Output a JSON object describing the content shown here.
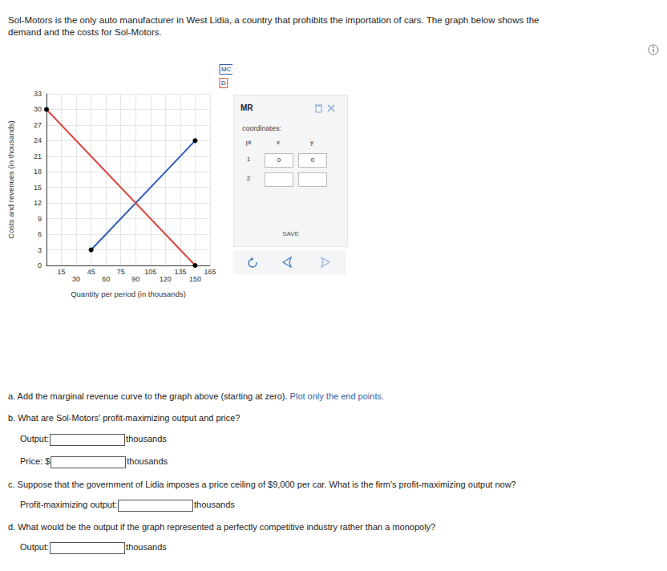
{
  "intro": "Sol-Motors is the only auto manufacturer in West Lidia, a country that prohibits the importation of cars. The graph below shows the demand and the costs for Sol-Motors.",
  "chart_data": {
    "type": "line",
    "xlabel": "Quantity per period (in thousands)",
    "ylabel": "Costs and revenues (in thousands)",
    "xlim": [
      0,
      165
    ],
    "ylim": [
      0,
      33
    ],
    "xticks": [
      15,
      30,
      45,
      60,
      75,
      90,
      105,
      120,
      135,
      150,
      165
    ],
    "yticks": [
      0,
      3,
      6,
      9,
      12,
      15,
      18,
      21,
      24,
      27,
      30,
      33
    ],
    "grid": true,
    "legend": "upper right",
    "series": [
      {
        "name": "MC",
        "color": "#2f5db3",
        "marker": "circle",
        "x": [
          45,
          150
        ],
        "values": [
          3,
          24
        ]
      },
      {
        "name": "D",
        "color": "#d9453d",
        "marker": "circle",
        "x": [
          0,
          150
        ],
        "values": [
          30,
          0
        ]
      }
    ]
  },
  "tool_panel": {
    "title": "MR",
    "caption": "coordinates:",
    "columns": [
      "pt",
      "x",
      "y"
    ],
    "rows": [
      [
        1,
        0,
        0
      ],
      [
        2,
        null,
        null
      ]
    ],
    "button": "SAVE"
  },
  "questions": [
    {
      "text": "a. Add the marginal revenue curve to the graph above (starting at zero).",
      "hint": "Plot only the end points.",
      "fields": []
    },
    {
      "text": "b. What are Sol-Motors' profit-maximizing output and price?",
      "fields": [
        {
          "label": "Output:",
          "unit": "thousands"
        },
        {
          "label": "Price: $",
          "unit": "thousands"
        }
      ]
    },
    {
      "text": "c. Suppose that the government of Lidia imposes a price ceiling of $9,000 per car. What is the firm's profit-maximizing output now?",
      "fields": [
        {
          "label": "Profit-maximizing output:",
          "unit": "thousands"
        }
      ]
    },
    {
      "text": "d. What would be the output if the graph represented a perfectly competitive industry rather than a monopoly?",
      "fields": [
        {
          "label": "Output:",
          "unit": "thousands"
        }
      ]
    }
  ]
}
